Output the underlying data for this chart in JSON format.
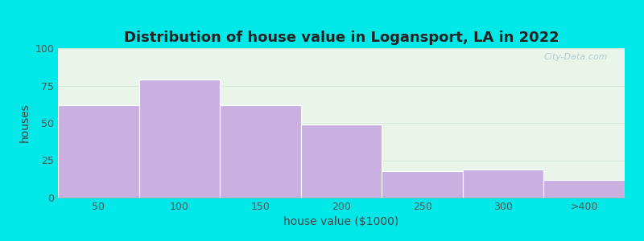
{
  "title": "Distribution of house value in Logansport, LA in 2022",
  "xlabel": "house value ($1000)",
  "ylabel": "houses",
  "categories": [
    "50",
    "100",
    "150",
    "200",
    "250",
    "300",
    ">400"
  ],
  "values": [
    62,
    79,
    62,
    49,
    18,
    19,
    12
  ],
  "bar_color": "#c9b0e0",
  "bar_edgecolor": "#ffffff",
  "ylim": [
    0,
    100
  ],
  "yticks": [
    0,
    25,
    50,
    75,
    100
  ],
  "bg_outer": "#00e8e8",
  "title_fontsize": 13,
  "axis_label_fontsize": 10,
  "tick_fontsize": 9,
  "watermark_text": "City-Data.com"
}
